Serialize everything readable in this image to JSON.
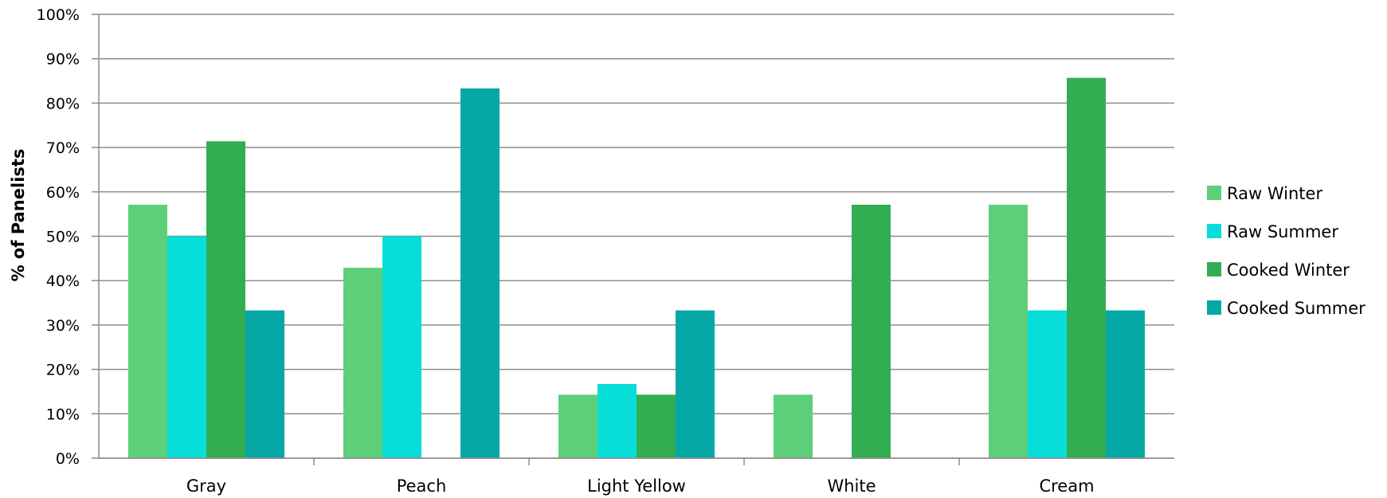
{
  "chart_data": {
    "type": "bar",
    "title": "",
    "xlabel": "",
    "ylabel": "% of Panelists",
    "ylim": [
      0,
      100
    ],
    "y_ticks": [
      "0%",
      "10%",
      "20%",
      "30%",
      "40%",
      "50%",
      "60%",
      "70%",
      "80%",
      "90%",
      "100%"
    ],
    "grid": true,
    "legend_position": "right",
    "categories": [
      "Gray",
      "Peach",
      "Light Yellow",
      "White",
      "Cream"
    ],
    "series": [
      {
        "name": "Raw Winter",
        "color": "#5ccf78",
        "values": [
          57.1,
          42.9,
          14.3,
          14.3,
          57.1
        ]
      },
      {
        "name": "Raw Summer",
        "color": "#07ddd9",
        "values": [
          50,
          50,
          16.7,
          0,
          33.3
        ]
      },
      {
        "name": "Cooked Winter",
        "color": "#33ad52",
        "values": [
          71.4,
          0,
          14.3,
          57.1,
          85.7
        ]
      },
      {
        "name": "Cooked Summer",
        "color": "#05a8a4",
        "values": [
          33.3,
          83.3,
          33.3,
          0,
          33.3
        ]
      }
    ]
  }
}
